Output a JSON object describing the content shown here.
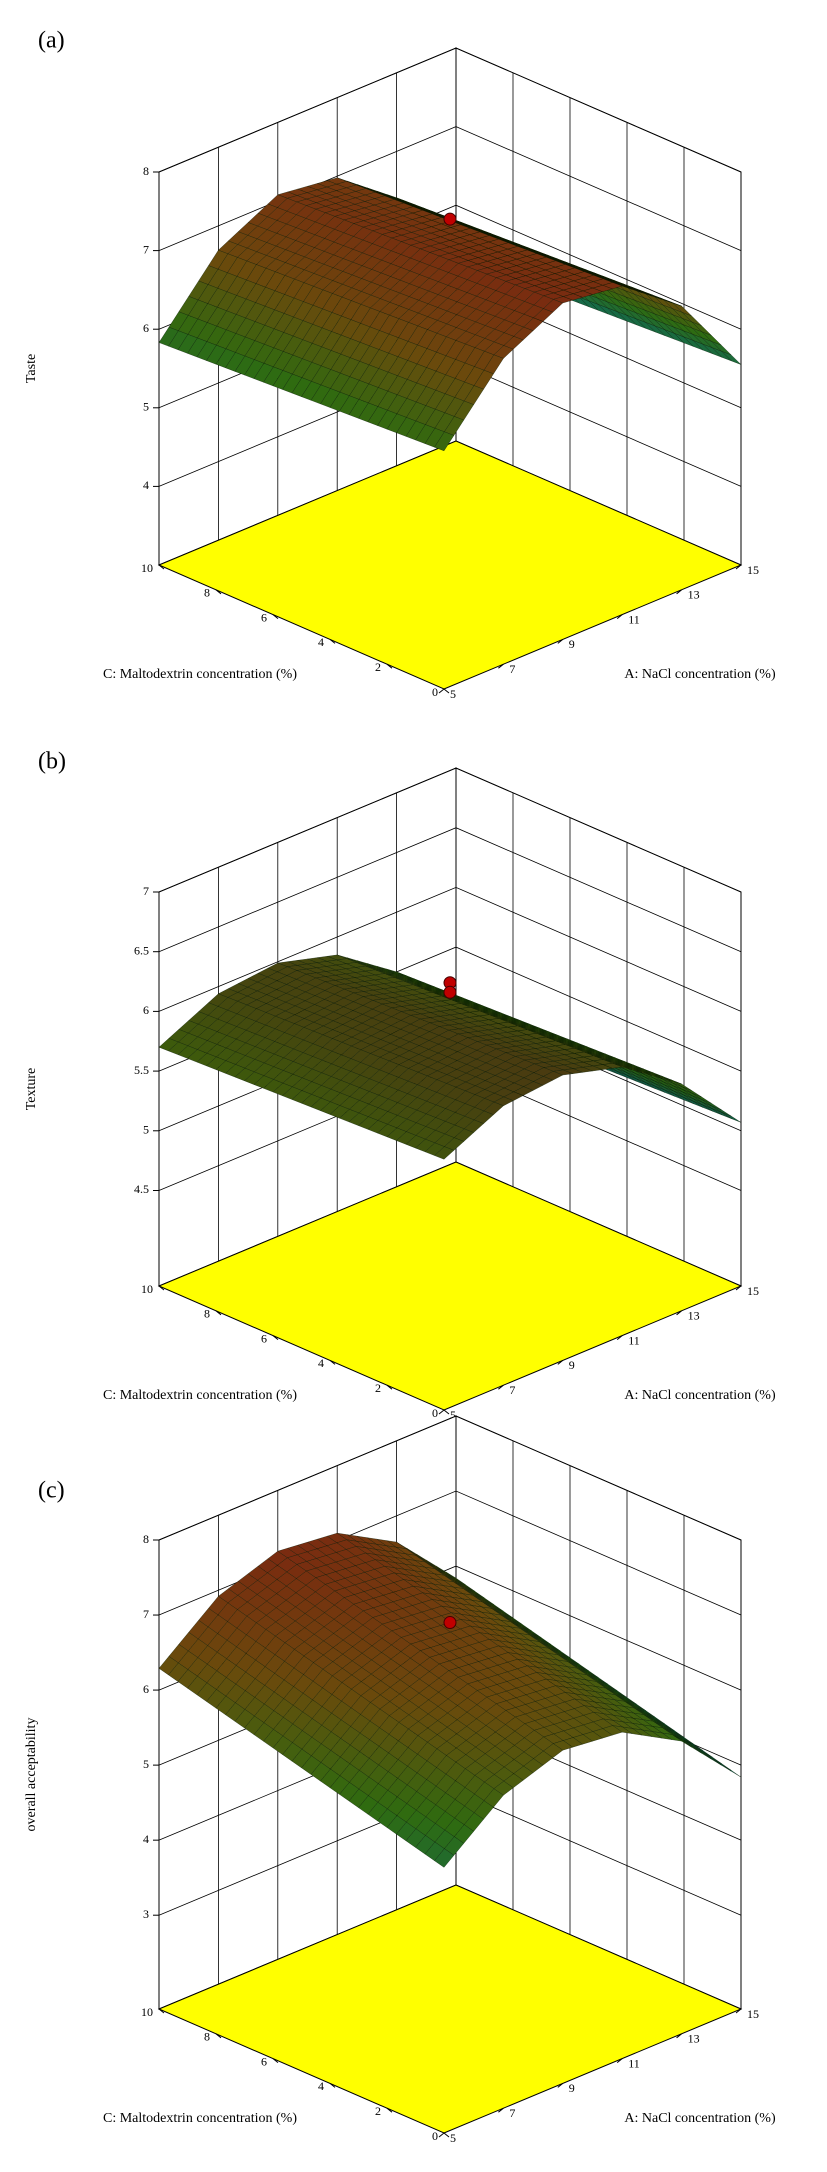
{
  "chart_data": [
    {
      "type": "surface3d",
      "label": "(a)",
      "zlabel": "Taste",
      "xlabel": "A: NaCl concentration (%)",
      "ylabel": "C: Maltodextrin concentration (%)",
      "x": [
        5,
        7,
        9,
        11,
        13,
        15
      ],
      "y": [
        0,
        2,
        4,
        6,
        8,
        10
      ],
      "z": [
        [
          6.03,
          6.89,
          7.28,
          7.18,
          6.61,
          5.55
        ],
        [
          5.99,
          6.85,
          7.24,
          7.14,
          6.57,
          5.51
        ],
        [
          5.95,
          6.81,
          7.2,
          7.1,
          6.53,
          5.47
        ],
        [
          5.91,
          6.77,
          7.16,
          7.06,
          6.49,
          5.43
        ],
        [
          5.87,
          6.73,
          7.12,
          7.02,
          6.45,
          5.39
        ],
        [
          5.83,
          6.69,
          7.08,
          6.98,
          6.41,
          5.35
        ]
      ],
      "xlim": [
        5,
        15
      ],
      "ylim": [
        0,
        10
      ],
      "zlim": [
        3,
        8
      ],
      "xticks": [
        5,
        7,
        9,
        11,
        13,
        15
      ],
      "yticks": [
        0,
        2,
        4,
        6,
        8,
        10
      ],
      "zticks": [
        4,
        5,
        6,
        7,
        8
      ],
      "points": {
        "x": [
          10
        ],
        "y": [
          5
        ],
        "z": [
          7.4
        ]
      },
      "point_color": "#c00000",
      "floor_color": "#ffff00",
      "surface_colors": [
        "#0c6a5c",
        "#2f6b10",
        "#6a4a0c",
        "#7a2a10"
      ]
    },
    {
      "type": "surface3d",
      "label": "(b)",
      "zlabel": "Texture",
      "xlabel": "A: NaCl concentration (%)",
      "ylabel": "C: Maltodextrin concentration (%)",
      "x": [
        5,
        7,
        9,
        11,
        13,
        15
      ],
      "y": [
        0,
        2,
        4,
        6,
        8,
        10
      ],
      "z": [
        [
          5.8,
          6.04,
          6.09,
          5.95,
          5.6,
          5.07
        ],
        [
          5.78,
          6.02,
          6.07,
          5.93,
          5.58,
          5.05
        ],
        [
          5.76,
          6.0,
          6.05,
          5.91,
          5.56,
          5.03
        ],
        [
          5.74,
          5.98,
          6.03,
          5.89,
          5.54,
          5.01
        ],
        [
          5.72,
          5.96,
          6.01,
          5.87,
          5.52,
          4.99
        ],
        [
          5.7,
          5.94,
          5.99,
          5.85,
          5.5,
          4.97
        ]
      ],
      "xlim": [
        5,
        15
      ],
      "ylim": [
        0,
        10
      ],
      "zlim": [
        3.7,
        7
      ],
      "xticks": [
        5,
        7,
        9,
        11,
        13,
        15
      ],
      "yticks": [
        0,
        2,
        4,
        6,
        8,
        10
      ],
      "zticks": [
        4.5,
        5,
        5.5,
        6,
        6.5,
        7
      ],
      "points": {
        "x": [
          10,
          10
        ],
        "y": [
          5,
          5
        ],
        "z": [
          6.24,
          6.16
        ]
      },
      "point_color": "#c00000",
      "floor_color": "#ffff00",
      "surface_colors": [
        "#0c5a5c",
        "#245e14",
        "#3d5a0c",
        "#4a3a10"
      ]
    },
    {
      "type": "surface3d",
      "label": "(c)",
      "zlabel": "overall acceptability",
      "xlabel": "A: NaCl concentration (%)",
      "ylabel": "C: Maltodextrin concentration (%)",
      "x": [
        5,
        7,
        9,
        11,
        13,
        15
      ],
      "y": [
        0,
        2,
        4,
        6,
        8,
        10
      ],
      "z": [
        [
          5.29,
          5.92,
          6.19,
          6.1,
          5.65,
          4.84
        ],
        [
          5.49,
          6.12,
          6.39,
          6.3,
          5.85,
          5.04
        ],
        [
          5.69,
          6.32,
          6.59,
          6.5,
          6.05,
          5.24
        ],
        [
          5.89,
          6.52,
          6.79,
          6.7,
          6.25,
          5.44
        ],
        [
          6.09,
          6.72,
          6.99,
          6.9,
          6.45,
          5.64
        ],
        [
          6.29,
          6.92,
          7.19,
          7.1,
          6.65,
          5.84
        ]
      ],
      "xlim": [
        5,
        15
      ],
      "ylim": [
        0,
        10
      ],
      "zlim": [
        1.75,
        8
      ],
      "xticks": [
        5,
        7,
        9,
        11,
        13,
        15
      ],
      "yticks": [
        0,
        2,
        4,
        6,
        8,
        10
      ],
      "zticks": [
        3,
        4,
        5,
        6,
        7,
        8
      ],
      "points": {
        "x": [
          10
        ],
        "y": [
          5
        ],
        "z": [
          6.9
        ]
      },
      "point_color": "#c00000",
      "floor_color": "#ffff00",
      "surface_colors": [
        "#0c6a5c",
        "#2f6b10",
        "#6a4a0c",
        "#7a2a10"
      ]
    }
  ]
}
